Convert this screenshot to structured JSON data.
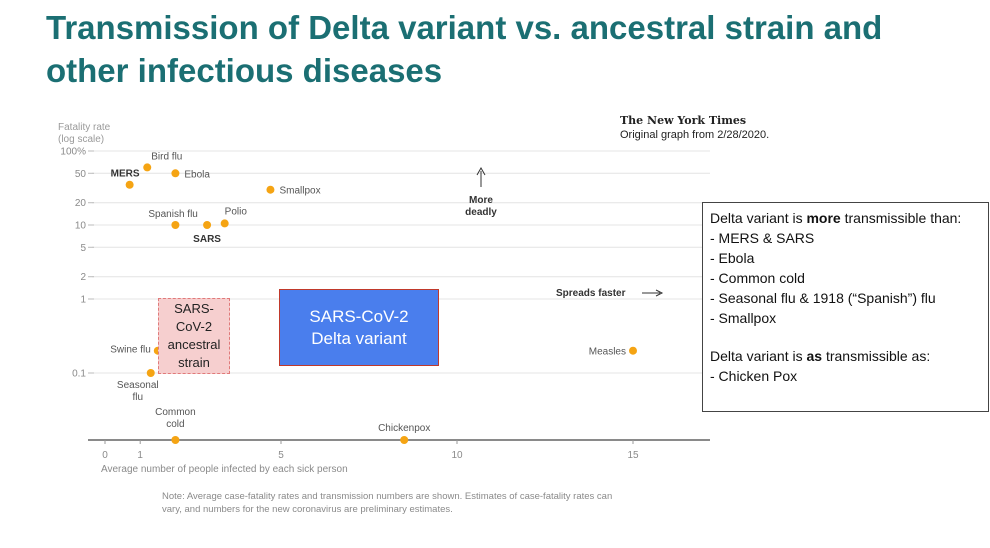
{
  "slide": {
    "title": "Transmission of Delta variant vs. ancestral strain and other infectious diseases"
  },
  "source": {
    "publisher": "The New York Times",
    "caption": "Original graph from 2/28/2020."
  },
  "chart_data": {
    "type": "scatter",
    "y_scale": "log",
    "ylabel": "Fatality rate\n(log scale)",
    "xlabel": "Average number of people infected by each sick person",
    "xlim": [
      -0.8,
      16.5
    ],
    "ylim": [
      0.05,
      120
    ],
    "x_ticks": [
      {
        "value": 0,
        "label": "0"
      },
      {
        "value": 1,
        "label": "1"
      },
      {
        "value": 5,
        "label": "5"
      },
      {
        "value": 10,
        "label": "10"
      },
      {
        "value": 15,
        "label": "15"
      }
    ],
    "y_ticks": [
      {
        "value": 100,
        "label": "100%"
      },
      {
        "value": 50,
        "label": "50"
      },
      {
        "value": 20,
        "label": "20"
      },
      {
        "value": 10,
        "label": "10"
      },
      {
        "value": 5,
        "label": "5"
      },
      {
        "value": 2,
        "label": "2"
      },
      {
        "value": 1,
        "label": "1"
      },
      {
        "value": 0.1,
        "label": "0.1"
      }
    ],
    "points": [
      {
        "name": "Bird flu",
        "x": 1.2,
        "y": 60,
        "bold": false
      },
      {
        "name": "MERS",
        "x": 0.7,
        "y": 35,
        "bold": true
      },
      {
        "name": "Ebola",
        "x": 2.0,
        "y": 50,
        "bold": false
      },
      {
        "name": "Smallpox",
        "x": 4.7,
        "y": 30,
        "bold": false
      },
      {
        "name": "Spanish flu",
        "x": 2.0,
        "y": 10,
        "bold": false
      },
      {
        "name": "SARS",
        "x": 2.9,
        "y": 10,
        "bold": true
      },
      {
        "name": "Polio",
        "x": 3.4,
        "y": 10.5,
        "bold": false
      },
      {
        "name": "Swine flu",
        "x": 1.5,
        "y": 0.2,
        "bold": false
      },
      {
        "name": "Seasonal flu",
        "x": 1.3,
        "y": 0.1,
        "bold": false
      },
      {
        "name": "Measles",
        "x": 15.0,
        "y": 0.2,
        "bold": false
      },
      {
        "name": "Common cold",
        "x": 2.0,
        "y": null,
        "bold": false
      },
      {
        "name": "Chickenpox",
        "x": 8.5,
        "y": null,
        "bold": false
      }
    ],
    "annotations": {
      "more_deadly": "More\ndeadly",
      "spreads_faster": "Spreads faster"
    },
    "highlights": {
      "ancestral": "SARS-\nCoV-2\nancestral\nstrain",
      "delta": "SARS-CoV-2\nDelta variant"
    },
    "note": "Note: Average case-fatality rates and transmission numbers are shown. Estimates of case-fatality rates can vary, and numbers for the new coronavirus are preliminary estimates.",
    "colors": {
      "point": "#f5a413",
      "title": "#1b6f73",
      "delta_fill": "#4a7eed",
      "ancestral_fill": "#f6cfcf"
    }
  },
  "info_box": {
    "more_intro_before": "Delta variant is ",
    "more_intro_bold": "more",
    "more_intro_after": " transmissible than:",
    "more_items": [
      "-  MERS & SARS",
      "-  Ebola",
      "-  Common cold",
      "-  Seasonal flu & 1918 (“Spanish”) flu",
      "-  Smallpox"
    ],
    "as_intro_before": "Delta variant is ",
    "as_intro_bold": "as",
    "as_intro_after": " transmissible as:",
    "as_items": [
      "- Chicken Pox"
    ]
  }
}
